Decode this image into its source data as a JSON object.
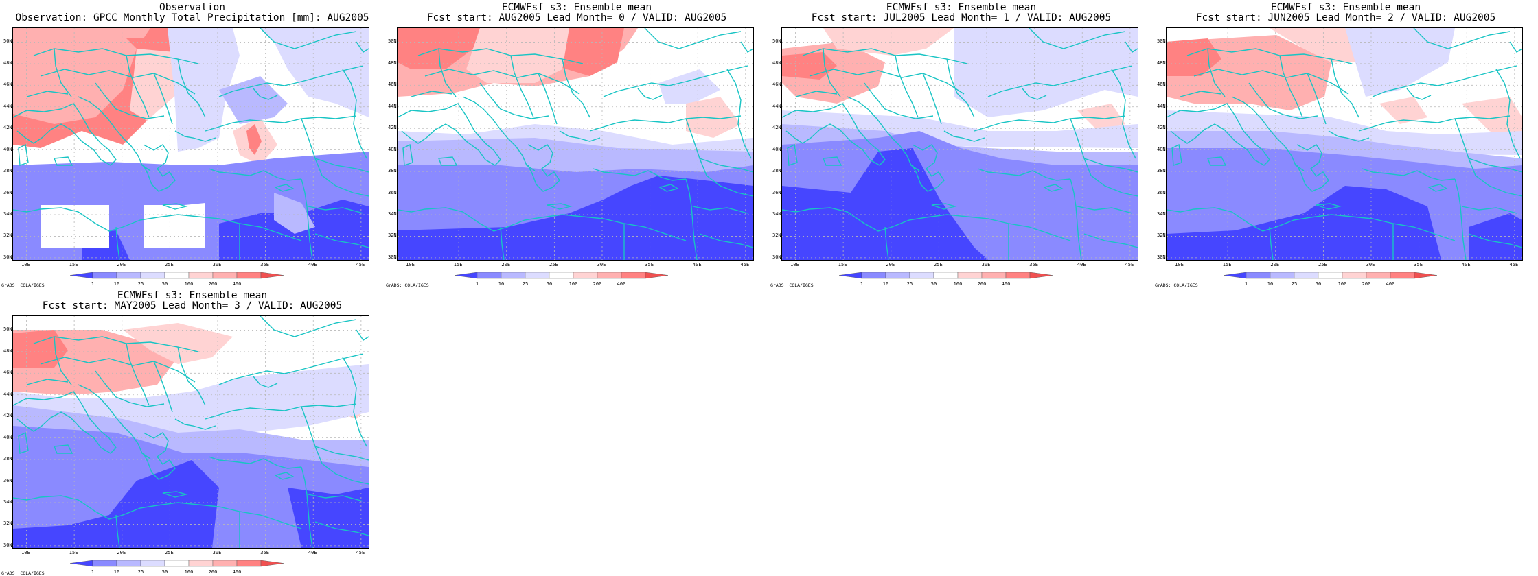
{
  "panels": [
    {
      "title1": "Observation",
      "title2": "Observation: GPCC Monthly Total Precipitation [mm]: AUG2005"
    },
    {
      "title1": "ECMWFsf s3: Ensemble mean",
      "title2": "Fcst start: AUG2005  Lead Month= 0 / VALID: AUG2005"
    },
    {
      "title1": "ECMWFsf s3: Ensemble mean",
      "title2": "Fcst start: JUL2005  Lead Month= 1 / VALID: AUG2005"
    },
    {
      "title1": "ECMWFsf s3: Ensemble mean",
      "title2": "Fcst start: JUN2005  Lead Month= 2 / VALID: AUG2005"
    },
    {
      "title1": "ECMWFsf s3: Ensemble mean",
      "title2": "Fcst start: MAY2005  Lead Month= 3 / VALID: AUG2005"
    }
  ],
  "lat_labels": [
    "50N",
    "48N",
    "46N",
    "44N",
    "42N",
    "40N",
    "38N",
    "36N",
    "34N",
    "32N",
    "30N"
  ],
  "lon_labels": [
    "10E",
    "15E",
    "20E",
    "25E",
    "30E",
    "35E",
    "40E",
    "45E"
  ],
  "colorbar": {
    "levels": [
      "1",
      "10",
      "25",
      "50",
      "100",
      "200",
      "400"
    ],
    "colors": [
      "#4646ff",
      "#8a8aff",
      "#b9b9ff",
      "#dcdcff",
      "#ffffff",
      "#ffd3d3",
      "#ffb0b0",
      "#ff8282",
      "#f05050"
    ]
  },
  "credit": "GrADS: COLA/IGES",
  "colors": {
    "coast": "#18c4c4",
    "grid": "#b8b8b8"
  }
}
